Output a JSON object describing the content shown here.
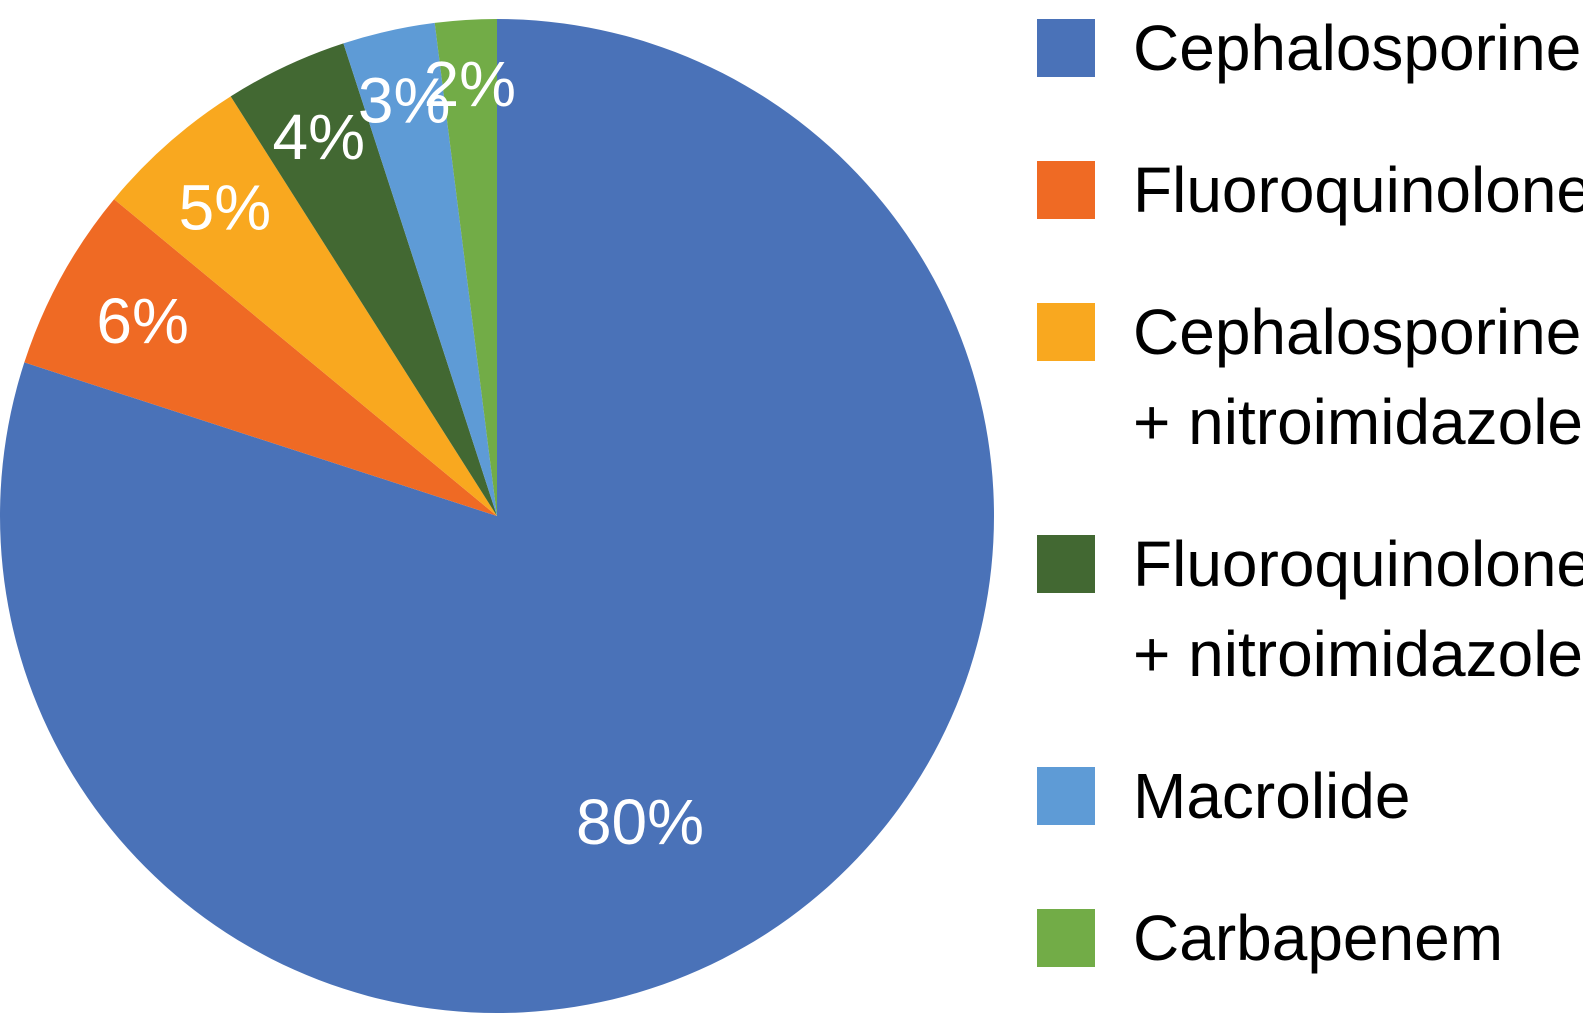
{
  "chart_data": {
    "type": "pie",
    "title": "",
    "start_angle_deg": 0,
    "direction": "clockwise",
    "legend_position": "right",
    "slices": [
      {
        "name": "Cephalosporine",
        "legend_lines": [
          "Cephalosporine"
        ],
        "value": 80,
        "label": "80%",
        "color": "#4A72B8"
      },
      {
        "name": "Fluoroquinolone",
        "legend_lines": [
          "Fluoroquinolone"
        ],
        "value": 6,
        "label": "6%",
        "color": "#EF6A24"
      },
      {
        "name": "Cephalosporine + nitroimidazole",
        "legend_lines": [
          "Cephalosporine",
          "+ nitroimidazole"
        ],
        "value": 5,
        "label": "5%",
        "color": "#F9A81F"
      },
      {
        "name": "Fluoroquinolone + nitroimidazole",
        "legend_lines": [
          "Fluoroquinolone",
          "+ nitroimidazole"
        ],
        "value": 4,
        "label": "4%",
        "color": "#426832"
      },
      {
        "name": "Macrolide",
        "legend_lines": [
          "Macrolide"
        ],
        "value": 3,
        "label": "3%",
        "color": "#5E9BD6"
      },
      {
        "name": "Carbapenem",
        "legend_lines": [
          "Carbapenem"
        ],
        "value": 2,
        "label": "2%",
        "color": "#72AC47"
      }
    ]
  }
}
